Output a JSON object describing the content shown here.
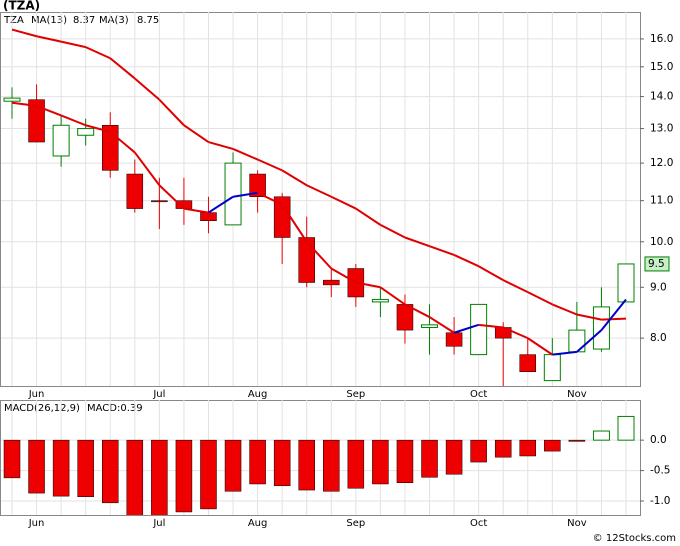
{
  "chart_data": [
    {
      "type": "candlestick",
      "title": "(TZA)",
      "symbol": "TZA",
      "symbol_color": "#008000",
      "categories": [
        null,
        "Jun",
        null,
        null,
        null,
        null,
        "Jul",
        null,
        null,
        null,
        "Aug",
        null,
        null,
        null,
        "Sep",
        null,
        null,
        null,
        null,
        "Oct",
        null,
        null,
        null,
        "Nov",
        null,
        null
      ],
      "open": [
        13.85,
        13.9,
        12.2,
        12.8,
        13.1,
        11.7,
        11.0,
        11.0,
        10.7,
        10.4,
        11.7,
        11.1,
        10.1,
        9.15,
        9.4,
        8.7,
        8.65,
        8.2,
        8.1,
        7.7,
        8.2,
        7.7,
        7.25,
        7.75,
        7.8,
        8.7
      ],
      "high": [
        14.3,
        14.4,
        13.4,
        13.3,
        13.5,
        12.1,
        11.6,
        11.6,
        11.1,
        12.3,
        11.8,
        11.2,
        10.6,
        9.4,
        9.5,
        9.0,
        8.85,
        8.65,
        8.4,
        8.65,
        8.3,
        8.0,
        8.0,
        8.7,
        9.0,
        9.5
      ],
      "low": [
        13.3,
        12.6,
        11.9,
        12.5,
        11.6,
        10.7,
        10.3,
        10.4,
        10.2,
        10.4,
        10.7,
        9.5,
        9.0,
        8.8,
        8.6,
        8.4,
        7.9,
        7.7,
        7.7,
        7.7,
        7.1,
        7.4,
        7.25,
        7.75,
        7.75,
        8.7
      ],
      "close": [
        13.95,
        12.6,
        13.1,
        13.0,
        11.8,
        10.8,
        10.97,
        10.8,
        10.5,
        12.0,
        11.1,
        10.1,
        9.1,
        9.05,
        8.8,
        8.75,
        8.15,
        8.25,
        7.85,
        8.65,
        8.0,
        7.4,
        7.7,
        8.15,
        8.6,
        9.5
      ],
      "up_color": "#008000",
      "down_color": "#ee0000",
      "series": [
        {
          "name": "MA(13)",
          "color": "#e00000",
          "last": 8.37,
          "values": [
            16.35,
            16.1,
            15.9,
            15.7,
            15.3,
            14.6,
            13.9,
            13.1,
            12.6,
            12.4,
            12.1,
            11.8,
            11.4,
            11.1,
            10.8,
            10.4,
            10.1,
            9.9,
            9.7,
            9.45,
            9.15,
            8.9,
            8.65,
            8.45,
            8.35,
            8.37
          ]
        },
        {
          "name": "MA(3)",
          "color": "#0000cc",
          "down_color": "#e00000",
          "last": 8.75,
          "values": [
            13.8,
            13.7,
            13.4,
            13.1,
            12.9,
            12.3,
            11.4,
            10.8,
            10.7,
            11.1,
            11.2,
            10.9,
            10.0,
            9.4,
            9.1,
            9.0,
            8.65,
            8.4,
            8.1,
            8.25,
            8.2,
            8.0,
            7.7,
            7.75,
            8.15,
            8.75
          ]
        }
      ],
      "last_price": 9.5,
      "last_price_color": "#c8f0c8",
      "ylim": [
        7.16,
        17.03
      ],
      "log_scale": true,
      "grid": true,
      "yticks": [
        {
          "value": 8,
          "label": "8.0"
        },
        {
          "value": 9,
          "label": "9.0"
        },
        {
          "value": 10,
          "label": "10.0"
        },
        {
          "value": 11,
          "label": "11.0"
        },
        {
          "value": 12,
          "label": "12.0"
        },
        {
          "value": 13,
          "label": "13.0"
        },
        {
          "value": 14,
          "label": "14.0"
        },
        {
          "value": 15,
          "label": "15.0"
        },
        {
          "value": 16,
          "label": "16.0"
        }
      ]
    },
    {
      "type": "bar",
      "title": "MACD(26,12,9)",
      "subtitle": "MACD:0.39",
      "subtitle_color": "#0000cc",
      "values": [
        -0.62,
        -0.87,
        -0.92,
        -0.93,
        -1.03,
        -1.25,
        -1.25,
        -1.18,
        -1.13,
        -0.84,
        -0.72,
        -0.75,
        -0.82,
        -0.84,
        -0.79,
        -0.72,
        -0.7,
        -0.61,
        -0.56,
        -0.36,
        -0.28,
        -0.26,
        -0.18,
        -0.02,
        0.15,
        0.39
      ],
      "up_color": "#008000",
      "down_color": "#ee0000",
      "ylim": [
        -1.23,
        0.66
      ],
      "grid": true,
      "yticks": [
        {
          "value": 0,
          "label": "0.0"
        },
        -0.5,
        {
          "value": -1,
          "label": "-1.0"
        }
      ]
    },
    {
      "credit": "© 12Stocks.com"
    }
  ]
}
